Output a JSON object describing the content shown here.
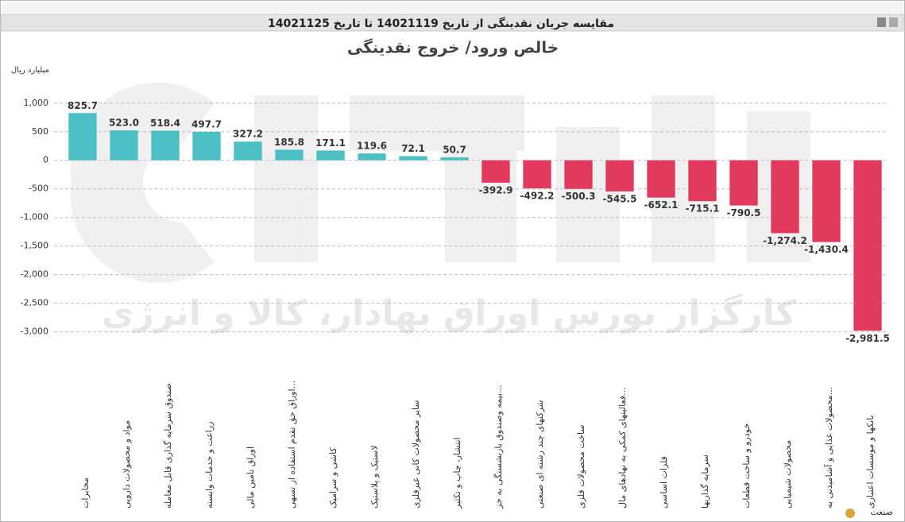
{
  "window": {
    "title": "مقایسه جریان نقدینگی از تاریخ 14021119 تا تاریخ 14021125"
  },
  "watermark": "کارگزار بورس اوراق بهادار، کالا و انرژی",
  "chart_data": {
    "type": "bar",
    "title": "خالص ورود/ خروج نقدینگی",
    "y_axis_label": "میلیارد ریال",
    "x_axis_label": "صنعت",
    "categories": [
      "مخابرات",
      "مواد و محصولات دارویی",
      "صندوق سرمایه گذاری قابل معامله",
      "زراعت و خدمات وابسته",
      "اوراق تامین مالی",
      "اوراق حق تقدم استفاده از تسهی...",
      "کاشی و سرامیک",
      "لاستیک و پلاستیک",
      "سایر محصولات کانی غیرفلزی",
      "انتشار، چاپ و تکثیر",
      "بیمه وصندوق بازنشستگی به جز...",
      "شرکتهای چند رشته ای صنعتی",
      "ساخت محصولات فلزی",
      "فعالیتهای کمکی به نهادهای مال...",
      "فلزات اساسی",
      "سرمایه گذاریها",
      "خودرو و ساخت قطعات",
      "محصولات شیمیایی",
      "محصولات غذایی و آشامیدنی به...",
      "بانکها و موسسات اعتباری"
    ],
    "values": [
      825.7,
      523.0,
      518.4,
      497.7,
      327.2,
      185.8,
      171.1,
      119.6,
      72.1,
      50.7,
      -392.9,
      -492.2,
      -500.3,
      -545.5,
      -652.1,
      -715.1,
      -790.5,
      -1274.2,
      -1430.4,
      -2981.5
    ],
    "value_labels": [
      "825.7",
      "523.0",
      "518.4",
      "497.7",
      "327.2",
      "185.8",
      "171.1",
      "119.6",
      "72.1",
      "50.7",
      "-392.9",
      "-492.2",
      "-500.3",
      "-545.5",
      "-652.1",
      "-715.1",
      "-790.5",
      "-1,274.2",
      "-1,430.4",
      "-2,981.5"
    ],
    "positive_color": "#4cbfc4",
    "negative_color": "#e23a5c",
    "ylim": [
      -3200,
      1400
    ],
    "yticks": [
      {
        "value": 1000,
        "label": "1,000"
      },
      500,
      0,
      -500,
      {
        "value": -1000,
        "label": "-1,000"
      },
      {
        "value": -1500,
        "label": "-1,500"
      },
      {
        "value": -2000,
        "label": "-2,000"
      },
      {
        "value": -2500,
        "label": "-2,500"
      },
      {
        "value": -3000,
        "label": "-3,000"
      }
    ],
    "grid": true
  }
}
